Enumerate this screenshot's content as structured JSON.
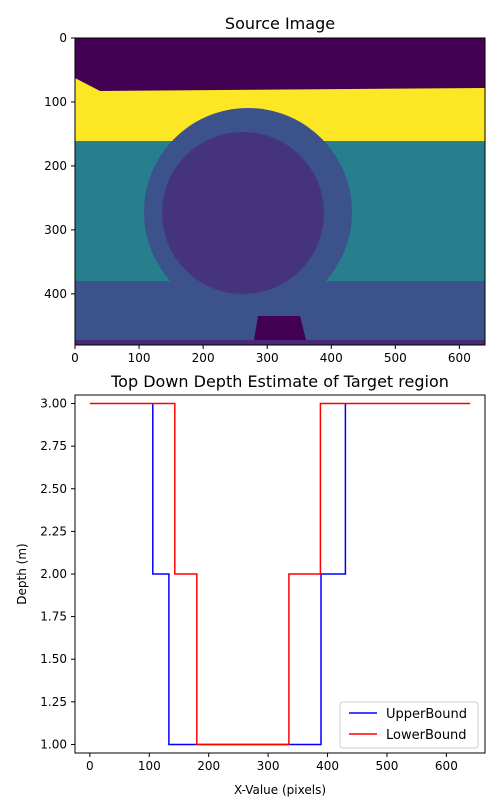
{
  "chart_data": [
    {
      "type": "heatmap",
      "title": "Source Image",
      "xlabel": "",
      "ylabel": "",
      "xlim": [
        0,
        640
      ],
      "ylim": [
        480,
        0
      ],
      "x_ticks": [
        0,
        100,
        200,
        300,
        400,
        500,
        600
      ],
      "y_ticks": [
        0,
        100,
        200,
        300,
        400
      ],
      "colormap": "viridis",
      "colors": {
        "top_background": "#440154",
        "yellow_band": "#fde725",
        "teal_band": "#277f8e",
        "blue_band": "#3b528b",
        "ring": "#3b528b",
        "inner_disc": "#46337e",
        "bottom_object": "#440154",
        "bottom_strip": "#482878"
      }
    },
    {
      "type": "line",
      "title": "Top Down Depth Estimate of Target region",
      "xlabel": "X-Value (pixels)",
      "ylabel": "Depth (m)",
      "xlim": [
        -25,
        665
      ],
      "ylim": [
        0.95,
        3.05
      ],
      "x_ticks": [
        0,
        100,
        200,
        300,
        400,
        500,
        600
      ],
      "y_ticks": [
        "1.00",
        "1.25",
        "1.50",
        "1.75",
        "2.00",
        "2.25",
        "2.50",
        "2.75",
        "3.00"
      ],
      "grid": false,
      "legend_position": "lower-right",
      "series": [
        {
          "name": "UpperBound",
          "color": "#0000ff",
          "x": [
            106,
            106,
            110,
            110,
            133,
            133,
            389,
            389,
            430,
            430
          ],
          "y": [
            3.0,
            2.0,
            2.0,
            2.0,
            2.0,
            1.0,
            1.0,
            2.0,
            2.0,
            3.0
          ]
        },
        {
          "name": "LowerBound",
          "color": "#ff0000",
          "x": [
            0,
            120,
            143,
            143,
            150,
            150,
            180,
            180,
            335,
            335,
            388,
            388,
            400,
            640
          ],
          "y": [
            3.0,
            3.0,
            3.0,
            2.0,
            2.0,
            2.0,
            2.0,
            1.0,
            1.0,
            2.0,
            2.0,
            3.0,
            3.0,
            3.0
          ]
        }
      ]
    }
  ]
}
